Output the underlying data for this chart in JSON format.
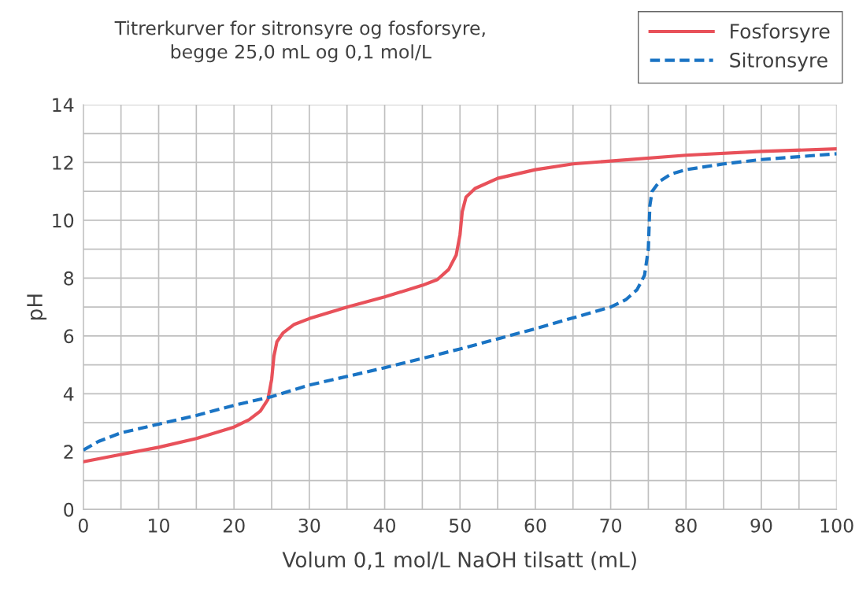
{
  "chart_data": {
    "type": "line",
    "title": "Titrerkurver for sitronsyre og fosforsyre,\nbegge 25,0 mL og 0,1 mol/L",
    "xlabel": "Volum 0,1 mol/L NaOH tilsatt (mL)",
    "ylabel": "pH",
    "xlim": [
      0,
      100
    ],
    "ylim": [
      0,
      14
    ],
    "xticks": [
      0,
      {
        "value": 5,
        "label": null
      },
      10,
      {
        "value": 15,
        "label": null
      },
      20,
      {
        "value": 25,
        "label": null
      },
      30,
      {
        "value": 35,
        "label": null
      },
      40,
      {
        "value": 45,
        "label": null
      },
      50,
      {
        "value": 55,
        "label": null
      },
      60,
      {
        "value": 65,
        "label": null
      },
      70,
      {
        "value": 75,
        "label": null
      },
      80,
      {
        "value": 85,
        "label": null
      },
      90,
      {
        "value": 95,
        "label": null
      },
      100
    ],
    "yticks": [
      0,
      {
        "value": 1,
        "label": null
      },
      2,
      {
        "value": 3,
        "label": null
      },
      4,
      {
        "value": 5,
        "label": null
      },
      6,
      {
        "value": 7,
        "label": null
      },
      8,
      {
        "value": 9,
        "label": null
      },
      10,
      {
        "value": 11,
        "label": null
      },
      12,
      {
        "value": 13,
        "label": null
      },
      14
    ],
    "grid": true,
    "legend": "top right",
    "marker": "none",
    "series": [
      {
        "name": "Fosforsyre",
        "color": "#e8515a",
        "line_style": "solid",
        "x": [
          0,
          5,
          10,
          15,
          20,
          22,
          23.5,
          24.5,
          25,
          25.3,
          25.7,
          26.5,
          28,
          30,
          35,
          40,
          45,
          47,
          48.5,
          49.5,
          50,
          50.3,
          50.8,
          52,
          55,
          60,
          65,
          70,
          80,
          90,
          100
        ],
        "values": [
          1.65,
          1.9,
          2.15,
          2.45,
          2.85,
          3.1,
          3.4,
          3.8,
          4.5,
          5.3,
          5.8,
          6.1,
          6.4,
          6.6,
          7.0,
          7.35,
          7.75,
          7.95,
          8.3,
          8.8,
          9.5,
          10.3,
          10.8,
          11.1,
          11.45,
          11.75,
          11.95,
          12.05,
          12.25,
          12.38,
          12.47
        ]
      },
      {
        "name": "Sitronsyre",
        "color": "#1a74c4",
        "line_style": "dashed",
        "x": [
          0,
          2,
          5,
          10,
          15,
          20,
          25,
          30,
          40,
          50,
          60,
          70,
          72,
          73.5,
          74.5,
          75,
          75.2,
          75.5,
          76.5,
          78,
          80,
          85,
          90,
          95,
          100
        ],
        "values": [
          2.05,
          2.35,
          2.65,
          2.95,
          3.25,
          3.6,
          3.9,
          4.3,
          4.9,
          5.55,
          6.25,
          7.0,
          7.25,
          7.6,
          8.1,
          9.0,
          10.5,
          11.0,
          11.35,
          11.6,
          11.75,
          11.95,
          12.1,
          12.2,
          12.3
        ]
      }
    ]
  }
}
